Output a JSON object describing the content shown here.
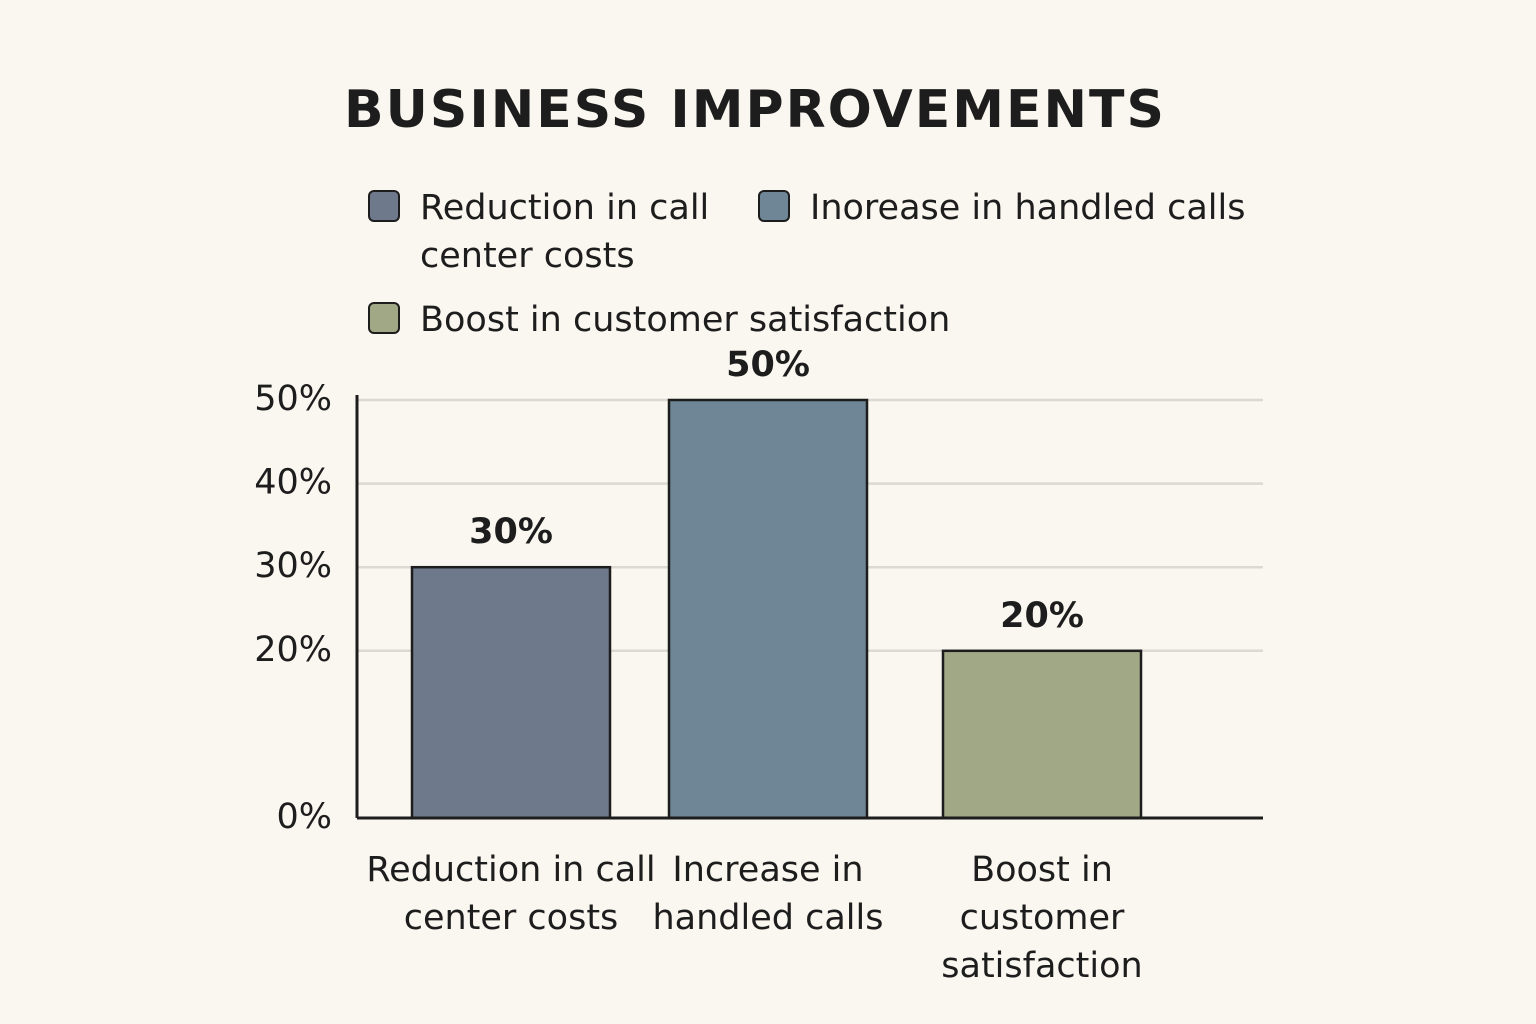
{
  "chart_data": {
    "type": "bar",
    "title": "BUSINESS IMPROVEMENTS",
    "legend": [
      "Reduction in call center costs",
      "Inorease in handled calls",
      "Boost in customer satisfaction"
    ],
    "categories": [
      "Reduction in call center costs",
      "Increase in handled calls",
      "Boost in customer satisfaction"
    ],
    "values": [
      30,
      50,
      20
    ],
    "value_labels": [
      "30%",
      "50%",
      "20%"
    ],
    "colors": [
      "#6e7a8c",
      "#6f8697",
      "#a0a886"
    ],
    "ylim": [
      0,
      50
    ],
    "yticks": [
      {
        "value": 0,
        "label": "0%"
      },
      {
        "value": 20,
        "label": "20%"
      },
      {
        "value": 30,
        "label": "30%"
      },
      {
        "value": 40,
        "label": "40%"
      },
      {
        "value": 50,
        "label": "50%"
      }
    ],
    "grid": true
  }
}
